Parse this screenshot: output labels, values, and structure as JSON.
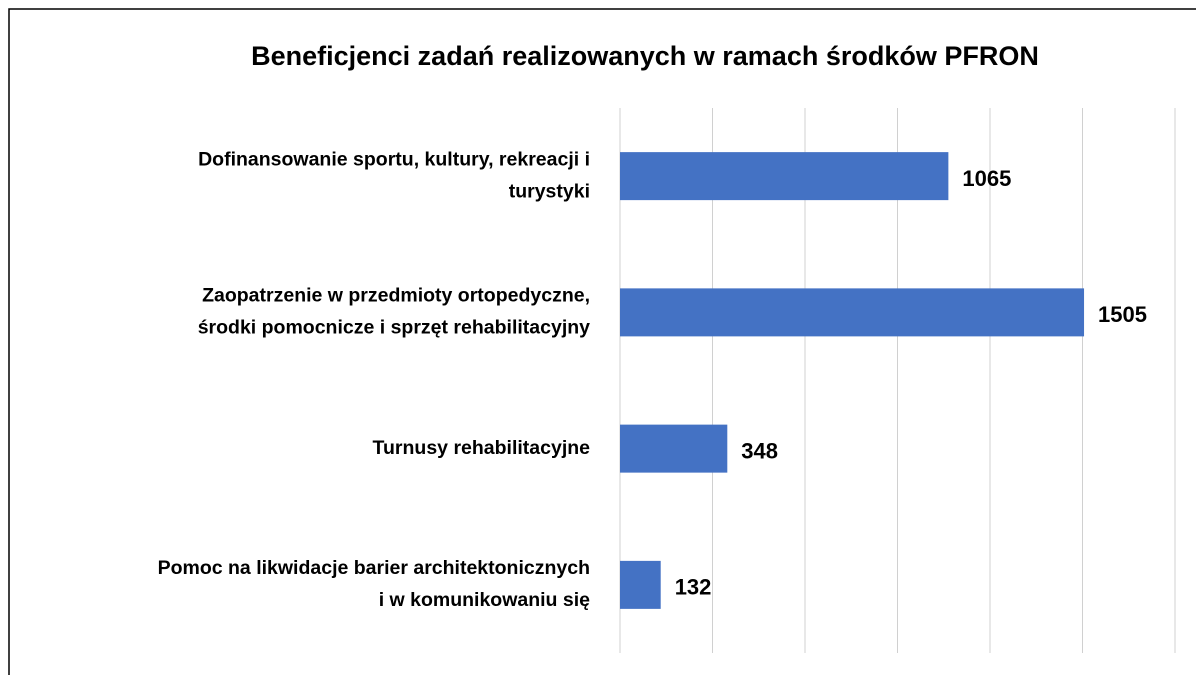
{
  "chart_data": {
    "type": "barh",
    "title": "Beneficjenci zadań realizowanych w ramach środków PFRON",
    "categories": [
      [
        "Dofinansowanie sportu, kultury, rekreacji i",
        "turystyki"
      ],
      [
        "Zaopatrzenie w przedmioty ortopedyczne,",
        "środki pomocnicze i sprzęt rehabilitacyjny"
      ],
      [
        "Turnusy rehabilitacyjne"
      ],
      [
        "Pomoc na likwidacje barier architektonicznych",
        "i w komunikowaniu się"
      ]
    ],
    "values": [
      1065,
      1505,
      348,
      132
    ],
    "color": "#4472c4",
    "xlim": [
      0,
      1800
    ],
    "xticks": [
      0,
      300,
      600,
      900,
      1200,
      1500,
      1800
    ],
    "grid": true
  }
}
